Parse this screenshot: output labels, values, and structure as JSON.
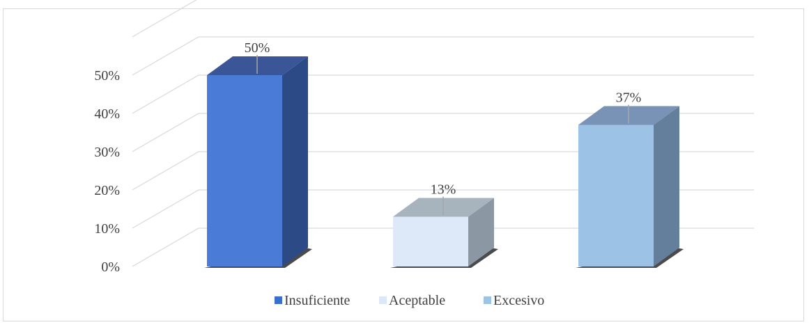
{
  "chart_data": {
    "type": "bar",
    "style": "3d-column",
    "categories": [
      "Insuficiente",
      "Aceptable",
      "Excesivo"
    ],
    "values": [
      50,
      13,
      37
    ],
    "data_labels": [
      "50%",
      "13%",
      "37%"
    ],
    "y_ticks": [
      "0%",
      "10%",
      "20%",
      "30%",
      "40%",
      "50%"
    ],
    "ylim": [
      0,
      60
    ],
    "grid": true,
    "legend_position": "bottom",
    "legend": [
      {
        "label": "Insuficiente",
        "color": "#3a6fd0"
      },
      {
        "label": "Aceptable",
        "color": "#dce8f7"
      },
      {
        "label": "Excesivo",
        "color": "#9dc3e6"
      }
    ],
    "colors": {
      "front": [
        "#4a7bd6",
        "#dde9f8",
        "#9cc2e6"
      ],
      "top": [
        "#3b5697",
        "#a7b3bd",
        "#7893b5"
      ],
      "side": [
        "#2c4b86",
        "#8b98a3",
        "#647f9c"
      ],
      "gridline": "#d9d9d9",
      "shadow": "#2b2b2b"
    }
  }
}
